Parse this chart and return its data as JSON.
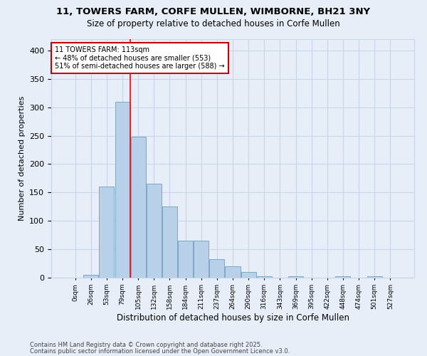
{
  "title_line1": "11, TOWERS FARM, CORFE MULLEN, WIMBORNE, BH21 3NY",
  "title_line2": "Size of property relative to detached houses in Corfe Mullen",
  "categories": [
    "0sqm",
    "26sqm",
    "53sqm",
    "79sqm",
    "105sqm",
    "132sqm",
    "158sqm",
    "184sqm",
    "211sqm",
    "237sqm",
    "264sqm",
    "290sqm",
    "316sqm",
    "343sqm",
    "369sqm",
    "395sqm",
    "422sqm",
    "448sqm",
    "474sqm",
    "501sqm",
    "527sqm"
  ],
  "values": [
    0,
    5,
    160,
    310,
    248,
    165,
    125,
    65,
    65,
    33,
    20,
    10,
    3,
    0,
    3,
    0,
    0,
    3,
    0,
    3,
    0
  ],
  "bar_color": "#b8d0e8",
  "bar_edge_color": "#7aaac8",
  "xlabel": "Distribution of detached houses by size in Corfe Mullen",
  "ylabel": "Number of detached properties",
  "ylim": [
    0,
    420
  ],
  "yticks": [
    0,
    50,
    100,
    150,
    200,
    250,
    300,
    350,
    400
  ],
  "vline_x_index": 4,
  "vline_color": "#ff0000",
  "annotation_text": "11 TOWERS FARM: 113sqm\n← 48% of detached houses are smaller (553)\n51% of semi-detached houses are larger (588) →",
  "annotation_box_color": "#ffffff",
  "annotation_box_edge": "#cc0000",
  "footnote1": "Contains HM Land Registry data © Crown copyright and database right 2025.",
  "footnote2": "Contains public sector information licensed under the Open Government Licence v3.0.",
  "bg_color": "#e8eef8",
  "plot_bg_color": "#e8eef8",
  "grid_color": "#c8d4e8"
}
